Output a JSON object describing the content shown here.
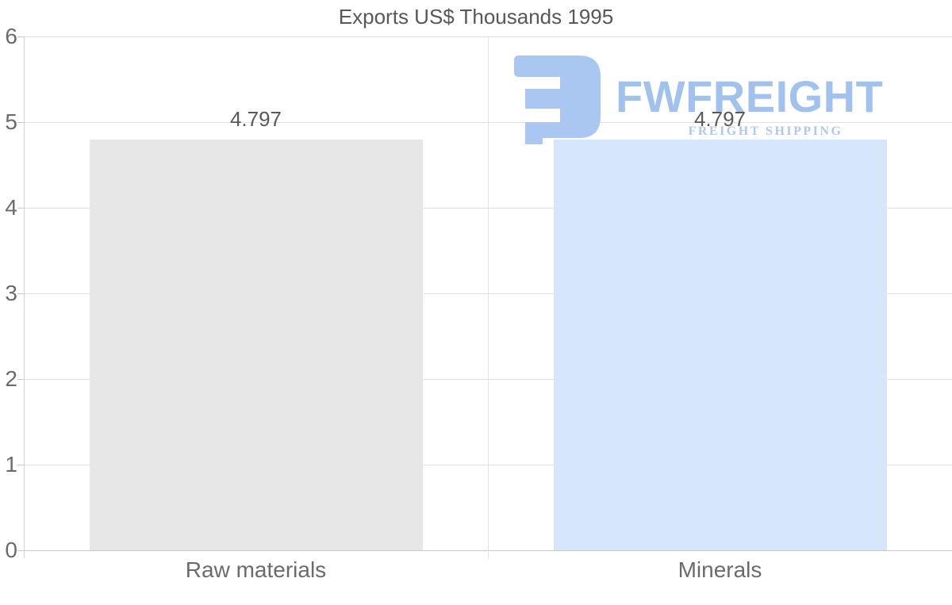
{
  "chart_data": {
    "type": "bar",
    "title": "Exports US$ Thousands 1995",
    "categories": [
      "Raw materials",
      "Minerals"
    ],
    "values": [
      4.797,
      4.797
    ],
    "value_labels": [
      "4.797",
      "4.797"
    ],
    "xlabel": "",
    "ylabel": "",
    "ylim": [
      0,
      6
    ],
    "yticks": [
      0,
      1,
      2,
      3,
      4,
      5,
      6
    ],
    "grid": true,
    "legend": false,
    "bar_colors": [
      "#e7e7e7",
      "#d7e7fb"
    ],
    "label_color": "#595959",
    "axis_text_color": "#6b6b6b",
    "gridline_color": "#e3e3e3",
    "axis_line_color": "#c9c9c9"
  },
  "watermark": {
    "brand": "FWFREIGHT",
    "tagline": "FREIGHT SHIPPING",
    "brand_color": "#a2c2ee",
    "icon_color": "#a9c7f1",
    "tagline_color": "#b0c7f0"
  }
}
